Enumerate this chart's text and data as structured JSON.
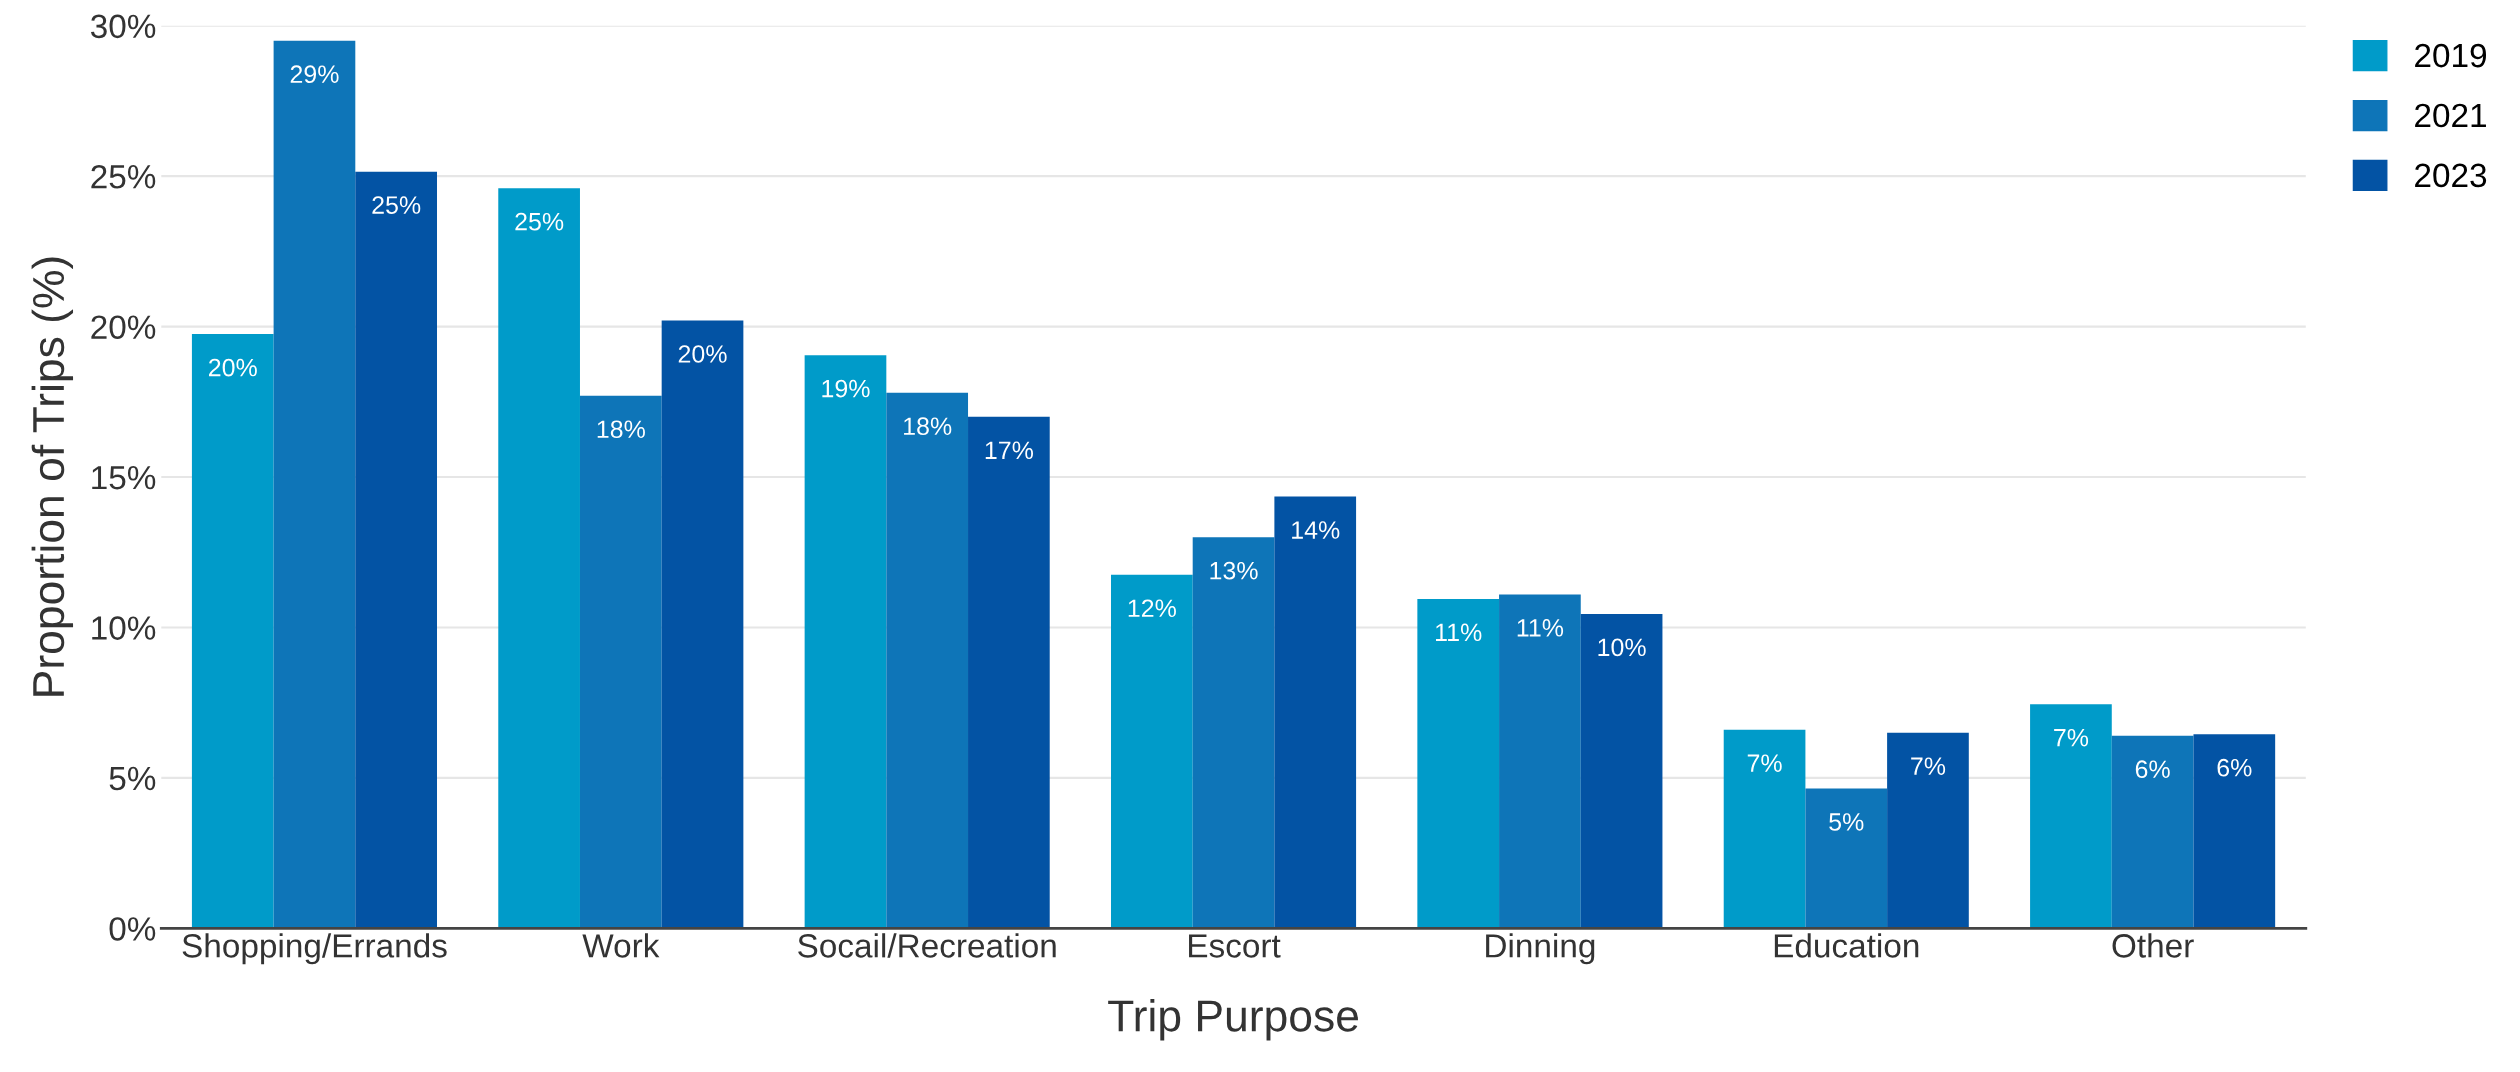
{
  "chart_data": {
    "type": "bar",
    "xlabel": "Trip Purpose",
    "ylabel": "Proportion of Trips (%)",
    "categories": [
      "Shopping/Errands",
      "Work",
      "Socail/Recreation",
      "Escort",
      "Dinning",
      "Education",
      "Other"
    ],
    "series": [
      {
        "name": "2019",
        "color": "#009bc9",
        "values": [
          19.75,
          24.6,
          19.05,
          11.75,
          10.95,
          6.6,
          7.45
        ],
        "value_labels": [
          "20%",
          "25%",
          "19%",
          "12%",
          "11%",
          "7%",
          "7%"
        ]
      },
      {
        "name": "2021",
        "color": "#0e75b8",
        "values": [
          29.5,
          17.7,
          17.8,
          13.0,
          11.1,
          4.65,
          6.4
        ],
        "value_labels": [
          "29%",
          "18%",
          "18%",
          "13%",
          "11%",
          "5%",
          "6%"
        ]
      },
      {
        "name": "2023",
        "color": "#0353a4",
        "values": [
          25.15,
          20.2,
          17.0,
          14.35,
          10.45,
          6.5,
          6.45
        ],
        "value_labels": [
          "25%",
          "20%",
          "17%",
          "14%",
          "10%",
          "7%",
          "6%"
        ]
      }
    ],
    "ylim": [
      0,
      30
    ],
    "yticks": [
      {
        "value": 0,
        "label": "0%"
      },
      {
        "value": 5,
        "label": "5%"
      },
      {
        "value": 10,
        "label": "10%"
      },
      {
        "value": 15,
        "label": "15%"
      },
      {
        "value": 20,
        "label": "20%"
      },
      {
        "value": 25,
        "label": "25%"
      },
      {
        "value": 30,
        "label": "30%"
      }
    ],
    "grid": "y",
    "legend": "top right"
  }
}
